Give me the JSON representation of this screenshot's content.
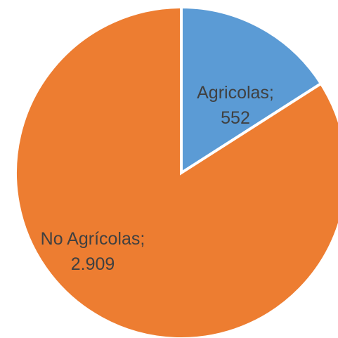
{
  "chart_data": {
    "type": "pie",
    "categories": [
      "Agricolas",
      "No Agrícolas"
    ],
    "values": [
      552,
      2909
    ],
    "value_labels": [
      "552",
      "2.909"
    ],
    "colors": [
      "#5b9bd5",
      "#ed7d31"
    ],
    "separator": ";",
    "start": "top",
    "direction": "clockwise",
    "slice_border_color": "#ffffff"
  }
}
